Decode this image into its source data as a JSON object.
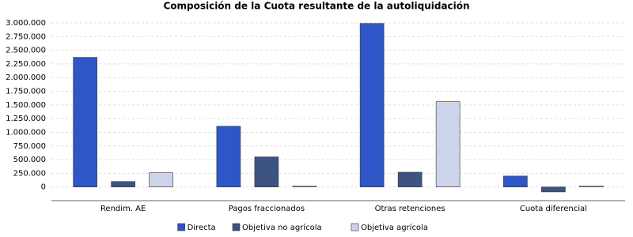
{
  "chart_data": {
    "type": "bar",
    "title": "Composición de la Cuota resultante de la autoliquidación",
    "categories": [
      "Rendim. AE",
      "Pagos fraccionados",
      "Otras retenciones",
      "Cuota diferencial"
    ],
    "series": [
      {
        "name": "Directa",
        "color": "#2f56c6",
        "values": [
          2370000,
          1110000,
          2990000,
          200000
        ]
      },
      {
        "name": "Objetiva no agrícola",
        "color": "#3d5382",
        "values": [
          100000,
          550000,
          270000,
          -90000
        ]
      },
      {
        "name": "Objetiva agrícola",
        "color": "#cdd3e8",
        "values": [
          260000,
          20000,
          1560000,
          20000
        ]
      }
    ],
    "ylim": [
      -250000,
      3000000
    ],
    "yticks": [
      {
        "value": 0,
        "label": "0"
      },
      {
        "value": 250000,
        "label": "250.000"
      },
      {
        "value": 500000,
        "label": "500.000"
      },
      {
        "value": 750000,
        "label": "750.000"
      },
      {
        "value": 1000000,
        "label": "1.000.000"
      },
      {
        "value": 1250000,
        "label": "1.250.000"
      },
      {
        "value": 1500000,
        "label": "1.500.000"
      },
      {
        "value": 1750000,
        "label": "1.750.000"
      },
      {
        "value": 2000000,
        "label": "2.000.000"
      },
      {
        "value": 2250000,
        "label": "2.250.000"
      },
      {
        "value": 2500000,
        "label": "2.500.000"
      },
      {
        "value": 2750000,
        "label": "2.750.000"
      },
      {
        "value": 3000000,
        "label": "3.000.000"
      }
    ],
    "grid": true,
    "legend": "bottom"
  }
}
